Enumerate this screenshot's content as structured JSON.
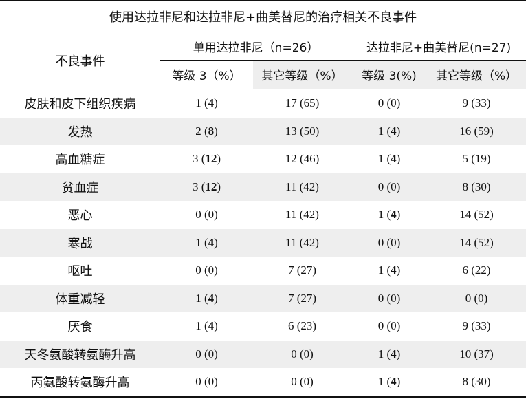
{
  "title": "使用达拉非尼和达拉非尼+曲美替尼的治疗相关不良事件",
  "header": {
    "event_label": "不良事件",
    "group1": "单用达拉非尼（n=26）",
    "group2": "达拉非尼+曲美替尼(n=27)",
    "sub": [
      "等级 3（%）",
      "其它等级（%）",
      "等级 3(%)",
      "其它等级（%）"
    ]
  },
  "rows": [
    {
      "event": "皮肤和皮下组织疾病",
      "c1n": "1",
      "c1p": "4",
      "c1b": true,
      "c2": "17 (65)",
      "c3n": "0",
      "c3p": "0",
      "c3b": false,
      "c4": "9 (33)"
    },
    {
      "event": "发热",
      "c1n": "2",
      "c1p": "8",
      "c1b": true,
      "c2": "13 (50)",
      "c3n": "1",
      "c3p": "4",
      "c3b": true,
      "c4": "16 (59)"
    },
    {
      "event": "高血糖症",
      "c1n": "3",
      "c1p": "12",
      "c1b": true,
      "c2": "12 (46)",
      "c3n": "1",
      "c3p": "4",
      "c3b": true,
      "c4": "5 (19)"
    },
    {
      "event": "贫血症",
      "c1n": "3",
      "c1p": "12",
      "c1b": true,
      "c2": "11 (42)",
      "c3n": "0",
      "c3p": "0",
      "c3b": false,
      "c4": "8 (30)"
    },
    {
      "event": "恶心",
      "c1n": "0",
      "c1p": "0",
      "c1b": false,
      "c2": "11 (42)",
      "c3n": "1",
      "c3p": "4",
      "c3b": true,
      "c4": "14 (52)"
    },
    {
      "event": "寒战",
      "c1n": "1",
      "c1p": "4",
      "c1b": true,
      "c2": "11 (42)",
      "c3n": "0",
      "c3p": "0",
      "c3b": false,
      "c4": "14 (52)"
    },
    {
      "event": "呕吐",
      "c1n": "0",
      "c1p": "0",
      "c1b": false,
      "c2": "7 (27)",
      "c3n": "1",
      "c3p": "4",
      "c3b": true,
      "c4": "6 (22)"
    },
    {
      "event": "体重减轻",
      "c1n": "1",
      "c1p": "4",
      "c1b": true,
      "c2": "7 (27)",
      "c3n": "0",
      "c3p": "0",
      "c3b": false,
      "c4": "0 (0)"
    },
    {
      "event": "厌食",
      "c1n": "1",
      "c1p": "4",
      "c1b": true,
      "c2": "6 (23)",
      "c3n": "0",
      "c3p": "0",
      "c3b": false,
      "c4": "9 (33)"
    },
    {
      "event": "天冬氨酸转氨酶升高",
      "c1n": "0",
      "c1p": "0",
      "c1b": false,
      "c2": "0 (0)",
      "c3n": "1",
      "c3p": "4",
      "c3b": true,
      "c4": "10 (37)"
    },
    {
      "event": "丙氨酸转氨酶升高",
      "c1n": "0",
      "c1p": "0",
      "c1b": false,
      "c2": "0 (0)",
      "c3n": "1",
      "c3p": "4",
      "c3b": true,
      "c4": "8 (30)"
    }
  ]
}
